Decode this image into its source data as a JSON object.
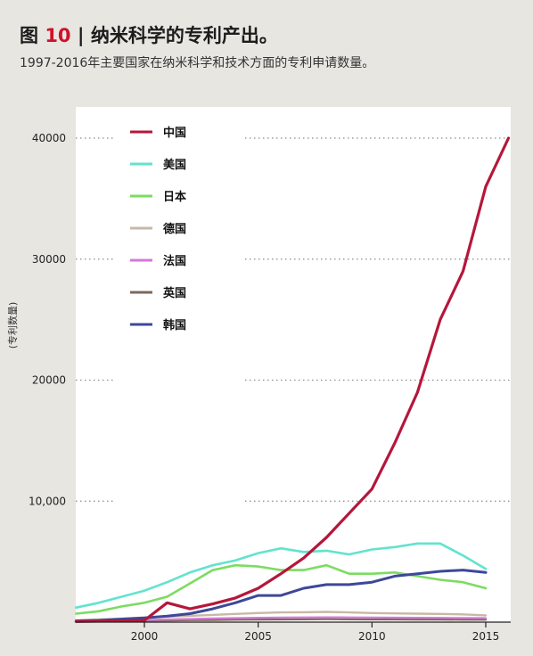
{
  "header": {
    "fig_label": "图",
    "fig_number": "10",
    "sep": "|",
    "title": "纳米科学的专利产出。",
    "subtitle": "1997-2016年主要国家在纳米科学和技术方面的专利申请数量。"
  },
  "chart_data": {
    "type": "line",
    "ylabel": "(专利数量)",
    "xlabel": "",
    "xlim": [
      1997,
      2016
    ],
    "ylim": [
      0,
      42500
    ],
    "x_ticks": [
      2000,
      2005,
      2010,
      2015
    ],
    "y_ticks": [
      {
        "value": 10000,
        "label": "10,000"
      },
      {
        "value": 20000,
        "label": "20000"
      },
      {
        "value": 30000,
        "label": "30000"
      },
      {
        "value": 40000,
        "label": "40000"
      }
    ],
    "grid": "horizontal dotted",
    "legend_position": "top-left",
    "x": [
      1997,
      1998,
      1999,
      2000,
      2001,
      2002,
      2003,
      2004,
      2005,
      2006,
      2007,
      2008,
      2009,
      2010,
      2011,
      2012,
      2013,
      2014,
      2015,
      2016
    ],
    "series": [
      {
        "name": "中国",
        "color": "#b5173a",
        "width": 3.2,
        "values": [
          50,
          80,
          100,
          150,
          1600,
          1100,
          1500,
          2000,
          2800,
          4000,
          5300,
          7000,
          9000,
          11000,
          14800,
          19000,
          25000,
          29000,
          36000,
          40000
        ]
      },
      {
        "name": "美国",
        "color": "#62e3cf",
        "width": 2.6,
        "values": [
          1200,
          1600,
          2100,
          2600,
          3300,
          4100,
          4700,
          5100,
          5700,
          6100,
          5800,
          5900,
          5600,
          6000,
          6200,
          6500,
          6500,
          5500,
          4400,
          null
        ]
      },
      {
        "name": "日本",
        "color": "#7bdc62",
        "width": 2.6,
        "values": [
          700,
          900,
          1300,
          1600,
          2100,
          3200,
          4300,
          4700,
          4600,
          4300,
          4300,
          4700,
          4000,
          4000,
          4100,
          3800,
          3500,
          3300,
          2800,
          null
        ]
      },
      {
        "name": "德国",
        "color": "#c7b8a6",
        "width": 2.4,
        "values": [
          150,
          220,
          300,
          380,
          450,
          520,
          600,
          680,
          750,
          800,
          820,
          850,
          800,
          750,
          720,
          700,
          680,
          640,
          560,
          null
        ]
      },
      {
        "name": "法国",
        "color": "#d678d6",
        "width": 2.2,
        "values": [
          80,
          110,
          150,
          180,
          220,
          260,
          300,
          330,
          360,
          380,
          390,
          400,
          390,
          380,
          370,
          360,
          350,
          340,
          330,
          null
        ]
      },
      {
        "name": "英国",
        "color": "#7d685c",
        "width": 2.2,
        "values": [
          60,
          80,
          100,
          120,
          140,
          160,
          180,
          200,
          210,
          220,
          230,
          240,
          230,
          220,
          220,
          210,
          210,
          200,
          200,
          null
        ]
      },
      {
        "name": "韩国",
        "color": "#3d4898",
        "width": 3.0,
        "values": [
          100,
          150,
          250,
          350,
          500,
          700,
          1100,
          1600,
          2200,
          2200,
          2800,
          3100,
          3100,
          3300,
          3800,
          4000,
          4200,
          4300,
          4100,
          null
        ]
      }
    ]
  }
}
